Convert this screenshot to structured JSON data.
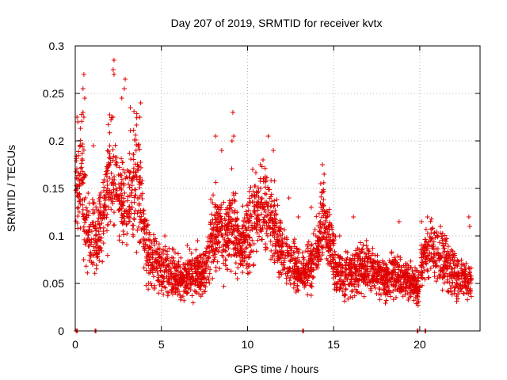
{
  "chart_data": {
    "type": "scatter",
    "title": "Day 207 of 2019, SRMTID for receiver kvtx",
    "xlabel": "GPS time / hours",
    "ylabel": "SRMTID / TECUs",
    "xlim": [
      0,
      23.5
    ],
    "ylim": [
      0,
      0.3
    ],
    "x_ticks": [
      "0",
      "5",
      "10",
      "15",
      "20"
    ],
    "y_ticks": [
      "0",
      "0.05",
      "0.1",
      "0.15",
      "0.2",
      "0.25",
      "0.3"
    ],
    "x_tick_values": [
      0,
      5,
      10,
      15,
      20
    ],
    "y_tick_values": [
      0,
      0.05,
      0.1,
      0.15,
      0.2,
      0.25,
      0.3
    ],
    "grid": true,
    "marker": "+",
    "colors": {
      "series": "#e00000",
      "grid": "#a0a0a0",
      "axis": "#000000"
    },
    "series": [
      {
        "name": "SRMTID",
        "trend": [
          [
            0.0,
            0.14
          ],
          [
            0.3,
            0.17
          ],
          [
            0.6,
            0.12
          ],
          [
            0.9,
            0.1
          ],
          [
            1.2,
            0.09
          ],
          [
            1.5,
            0.11
          ],
          [
            1.8,
            0.14
          ],
          [
            2.1,
            0.17
          ],
          [
            2.4,
            0.15
          ],
          [
            2.7,
            0.14
          ],
          [
            3.0,
            0.13
          ],
          [
            3.3,
            0.15
          ],
          [
            3.6,
            0.17
          ],
          [
            3.9,
            0.12
          ],
          [
            4.2,
            0.08
          ],
          [
            4.6,
            0.07
          ],
          [
            5.0,
            0.065
          ],
          [
            5.5,
            0.06
          ],
          [
            6.0,
            0.055
          ],
          [
            6.5,
            0.055
          ],
          [
            7.0,
            0.06
          ],
          [
            7.5,
            0.06
          ],
          [
            7.9,
            0.1
          ],
          [
            8.3,
            0.11
          ],
          [
            8.7,
            0.09
          ],
          [
            9.1,
            0.12
          ],
          [
            9.5,
            0.09
          ],
          [
            10.0,
            0.1
          ],
          [
            10.5,
            0.12
          ],
          [
            11.0,
            0.13
          ],
          [
            11.5,
            0.11
          ],
          [
            12.0,
            0.08
          ],
          [
            12.5,
            0.07
          ],
          [
            13.0,
            0.06
          ],
          [
            13.5,
            0.065
          ],
          [
            14.0,
            0.08
          ],
          [
            14.4,
            0.12
          ],
          [
            14.8,
            0.09
          ],
          [
            15.2,
            0.06
          ],
          [
            15.6,
            0.055
          ],
          [
            16.0,
            0.06
          ],
          [
            16.5,
            0.065
          ],
          [
            17.0,
            0.07
          ],
          [
            17.5,
            0.06
          ],
          [
            18.0,
            0.055
          ],
          [
            18.5,
            0.06
          ],
          [
            19.0,
            0.055
          ],
          [
            19.5,
            0.05
          ],
          [
            19.9,
            0.045
          ],
          [
            20.3,
            0.08
          ],
          [
            20.7,
            0.085
          ],
          [
            21.1,
            0.08
          ],
          [
            21.5,
            0.07
          ],
          [
            22.0,
            0.06
          ],
          [
            22.5,
            0.055
          ],
          [
            23.0,
            0.05
          ]
        ],
        "peaks": [
          [
            2.25,
            0.285
          ],
          [
            2.2,
            0.275
          ],
          [
            2.25,
            0.27
          ],
          [
            0.5,
            0.27
          ],
          [
            0.45,
            0.255
          ],
          [
            0.55,
            0.245
          ],
          [
            0.45,
            0.23
          ],
          [
            0.5,
            0.225
          ],
          [
            2.9,
            0.265
          ],
          [
            2.85,
            0.255
          ],
          [
            2.7,
            0.245
          ],
          [
            3.8,
            0.24
          ],
          [
            3.75,
            0.225
          ],
          [
            3.2,
            0.235
          ],
          [
            0.1,
            0.225
          ],
          [
            0.15,
            0.22
          ],
          [
            1.05,
            0.195
          ],
          [
            9.15,
            0.23
          ],
          [
            8.15,
            0.205
          ],
          [
            9.2,
            0.205
          ],
          [
            9.1,
            0.2
          ],
          [
            8.5,
            0.19
          ],
          [
            11.2,
            0.205
          ],
          [
            11.5,
            0.19
          ],
          [
            10.9,
            0.18
          ],
          [
            10.3,
            0.17
          ],
          [
            10.75,
            0.175
          ],
          [
            14.35,
            0.175
          ],
          [
            14.45,
            0.165
          ],
          [
            14.25,
            0.155
          ],
          [
            13.7,
            0.13
          ],
          [
            12.4,
            0.14
          ],
          [
            12.95,
            0.12
          ],
          [
            16.15,
            0.12
          ],
          [
            18.8,
            0.115
          ],
          [
            20.45,
            0.12
          ],
          [
            20.1,
            0.115
          ],
          [
            22.85,
            0.12
          ],
          [
            22.9,
            0.11
          ],
          [
            21.2,
            0.11
          ],
          [
            5.2,
            0.1
          ],
          [
            7.1,
            0.095
          ],
          [
            6.5,
            0.09
          ],
          [
            15.35,
            0.1
          ]
        ],
        "zero_values": [
          [
            0.05,
            0.0
          ],
          [
            0.1,
            0.0
          ],
          [
            0.12,
            0.0
          ],
          [
            1.15,
            0.0
          ],
          [
            1.2,
            0.0
          ],
          [
            13.2,
            0.0
          ],
          [
            13.25,
            0.0
          ],
          [
            19.85,
            0.0
          ],
          [
            19.9,
            0.0
          ],
          [
            20.3,
            0.0
          ],
          [
            20.35,
            0.0
          ]
        ]
      }
    ]
  }
}
